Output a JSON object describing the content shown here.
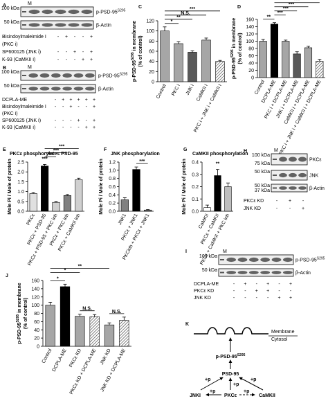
{
  "chart_data": [
    {
      "type": "bar",
      "ylabel": {
        "text": "p-PSD-95",
        "sup": "S295",
        "after": " in membrane"
      },
      "ylabel2": "(% of control)",
      "categories": [
        "Control",
        "PKC i",
        "JNK i",
        "CaMKII i",
        "PKC i + JNK i + CaMKII i"
      ],
      "values": [
        100,
        75,
        58,
        82,
        40
      ],
      "errors": [
        8,
        4,
        3,
        4,
        2
      ],
      "colors": [
        "#a6a6a6",
        "#a6a6a6",
        "#595959",
        "#a6a6a6",
        "hatch"
      ],
      "ylim": [
        0,
        120
      ],
      "yticks": [
        0,
        20,
        40,
        60,
        80,
        100,
        120
      ],
      "annotations": [
        "*",
        "**",
        "N.S.",
        "***"
      ]
    },
    {
      "type": "bar",
      "ylabel": {
        "text": "p-PSD-95",
        "sup": "S295",
        "after": " in membrane"
      },
      "ylabel2": "(% of control)",
      "categories": [
        "Control",
        "DCPLA-ME",
        "PKC i + DCPLA-ME",
        "JNK i + DCPLA-ME",
        "CaMKII i + DCPLA-ME",
        "PKC i + JNK i + CaMKII i + DCPLA-ME"
      ],
      "values": [
        100,
        147,
        100,
        65,
        82,
        45
      ],
      "errors": [
        5,
        4,
        3,
        6,
        4,
        5
      ],
      "colors": [
        "#a6a6a6",
        "#000000",
        "#a6a6a6",
        "#595959",
        "#a6a6a6",
        "hatch"
      ],
      "ylim": [
        0,
        160
      ],
      "yticks": [
        0,
        20,
        40,
        60,
        80,
        100,
        120,
        140,
        160
      ],
      "annotations": [
        "**",
        "***",
        "***",
        "***",
        "***"
      ]
    },
    {
      "type": "bar",
      "title": "PKCε phosphorylates PSD-95",
      "ylabel": "Mole Pi / Mole of protein",
      "categories": [
        "PKCε",
        "PKCε + PSD-95",
        "PKCε + PSD-95 + PKC inh",
        "PKCε + PKC inh",
        "PKCε + CaMKII inh"
      ],
      "values": [
        0.9,
        2.3,
        0.45,
        0.8,
        1.6
      ],
      "errors": [
        0.05,
        0.08,
        0.05,
        0.05,
        0.08
      ],
      "colors": [
        "#e0e0e0",
        "#000000",
        "#d0d0d0",
        "#808080",
        "#d0d0d0"
      ],
      "ylim": [
        0,
        2.5
      ],
      "yticks": [
        {
          "value": 0,
          "label": "0.0"
        },
        0.5,
        {
          "value": 1,
          "label": "1.0"
        },
        1.5,
        {
          "value": 2,
          "label": "2.0"
        },
        2.5
      ],
      "annotations": [
        "***",
        "***",
        "***",
        "***"
      ]
    },
    {
      "type": "bar",
      "title": "JNK phosphorylation",
      "ylabel": "Mole Pi / Mole of protein",
      "categories": [
        "JNK1",
        "PKCε + JNK1",
        "PKCinh + PKCε + JNK1"
      ],
      "values": [
        0.28,
        1.02,
        0.03
      ],
      "errors": [
        0.05,
        0.06,
        0.01
      ],
      "colors": [
        "#808080",
        "#000000",
        "#808080"
      ],
      "ylim": [
        0,
        1.2
      ],
      "yticks": [
        {
          "value": 0,
          "label": "0.0"
        },
        0.2,
        0.4,
        0.6,
        0.8,
        {
          "value": 1,
          "label": "1.0"
        },
        1.2
      ],
      "annotations": [
        "***"
      ]
    },
    {
      "type": "bar",
      "title": "CaMKII phosphorylation",
      "ylabel": "Mole Pi / Mole of protein",
      "categories": [
        "CaMKII",
        "PKCε + CaMKII",
        "PKCε + CaMKII + PKC inh"
      ],
      "values": [
        0.03,
        0.29,
        0.2
      ],
      "errors": [
        0.02,
        0.05,
        0.03
      ],
      "colors": [
        "#ffffff",
        "#000000",
        "#bfbfbf"
      ],
      "ylim": [
        0,
        0.4
      ],
      "yticks": [
        {
          "value": 0,
          "label": "0.0"
        },
        0.1,
        0.2,
        0.3,
        0.4
      ],
      "annotations": [
        "**"
      ]
    },
    {
      "type": "bar",
      "ylabel": {
        "text": "p-PSD-95",
        "sup": "S295",
        "after": " in membrane"
      },
      "ylabel2": "(% of control)",
      "categories": [
        "Control",
        "DCPLA-ME",
        "PKCε KD",
        "PKCε KD + DCPLA-ME",
        "JNK KD",
        "JNK KD + DCPLA-ME"
      ],
      "values": [
        100,
        145,
        73,
        72,
        52,
        63
      ],
      "errors": [
        7,
        6,
        5,
        5,
        5,
        8
      ],
      "colors": [
        "#a6a6a6",
        "#000000",
        "#a6a6a6",
        "hatch",
        "#a6a6a6",
        "hatch"
      ],
      "ylim": [
        0,
        160
      ],
      "yticks": [
        0,
        20,
        40,
        60,
        80,
        100,
        120,
        140,
        160
      ],
      "annotations": [
        "*",
        "*",
        "**",
        "N.S.",
        "N.S."
      ]
    }
  ],
  "panel_labels": [
    "A",
    "B",
    "C",
    "D",
    "E",
    "F",
    "G",
    "H",
    "I",
    "J",
    "K"
  ],
  "blots": [
    {
      "marker": "M",
      "strips": [
        {
          "kda": [
            "100 kDa"
          ],
          "label": {
            "text": "p-PSD-95",
            "sup": "S295"
          }
        },
        {
          "kda": [
            "50 kDa"
          ],
          "label": "β-Actin"
        }
      ],
      "rows": [
        {
          "name": [
            "Bisindoylmaleimide I",
            "(PKC i)"
          ],
          "signs": [
            "-",
            "+",
            "-",
            "-",
            "+"
          ]
        },
        {
          "name": [
            "SP600125 (JNK i)"
          ],
          "signs": [
            "-",
            "-",
            "+",
            "-",
            "+"
          ]
        },
        {
          "name": [
            "K-93 (CaMKII i)"
          ],
          "signs": [
            "-",
            "-",
            "-",
            "+",
            "+"
          ]
        }
      ]
    },
    {
      "marker": "M",
      "strips": [
        {
          "kda": [
            "100 kDa"
          ],
          "label": {
            "text": "p-PSD-95",
            "sup": "S295"
          }
        },
        {
          "kda": [
            "50 kDa"
          ],
          "label": "β-Actin"
        }
      ],
      "rows": [
        {
          "name": [
            "DCPLA-ME"
          ],
          "signs": [
            "-",
            "+",
            "+",
            "+",
            "+",
            "+"
          ]
        },
        {
          "name": [
            "Bisindoylmaleimide I",
            "(PKC i)"
          ],
          "signs": [
            "-",
            "-",
            "+",
            "-",
            "-",
            "+"
          ]
        },
        {
          "name": [
            "SP600125 (JNK i)"
          ],
          "signs": [
            "-",
            "-",
            "-",
            "+",
            "-",
            "+"
          ]
        },
        {
          "name": [
            "K-93 (CaMKII i)"
          ],
          "signs": [
            "-",
            "-",
            "-",
            "-",
            "+",
            "+"
          ]
        }
      ]
    },
    {
      "marker": "M",
      "strips": [
        {
          "kda": [
            "100 kDa",
            "75 kDa"
          ],
          "label": "PKCε"
        },
        {
          "kda": [
            "50 kDa"
          ],
          "label": "JNK"
        },
        {
          "kda": [
            "50 kDa",
            "37 kDa"
          ],
          "label": "β-Actin"
        }
      ],
      "rows": [
        {
          "name": [
            "PKCε KD"
          ],
          "signs": [
            "-",
            "+",
            "-"
          ]
        },
        {
          "name": [
            "JNK KD"
          ],
          "signs": [
            "-",
            "-",
            "+"
          ]
        }
      ]
    },
    {
      "marker": "M",
      "strips": [
        {
          "kda": [
            "100 kDa"
          ],
          "label": {
            "text": "p-PSD-95",
            "sup": "S295"
          }
        },
        {
          "kda": [
            "50 kDa"
          ],
          "label": "β-Actin"
        }
      ],
      "rows": [
        {
          "name": [
            "DCPLA-ME"
          ],
          "signs": [
            "-",
            "+",
            "-",
            "+",
            "-",
            "+"
          ]
        },
        {
          "name": [
            "PKCε KD"
          ],
          "signs": [
            "-",
            "-",
            "+",
            "+",
            "-",
            "-"
          ]
        },
        {
          "name": [
            "JNK KD"
          ],
          "signs": [
            "-",
            "-",
            "-",
            "-",
            "+",
            "+"
          ]
        }
      ]
    }
  ],
  "diagram": {
    "membrane": "Membrane",
    "cytosol": "Cytosol",
    "top": {
      "text": "p-PSD-95",
      "sup": "S295"
    },
    "psd95": "PSD-95",
    "plus": [
      "+p",
      "+p",
      "+p",
      "+p",
      "+p"
    ],
    "jnk": "JNKI",
    "pkc": "PKCε",
    "camkii": "CaMKII"
  }
}
